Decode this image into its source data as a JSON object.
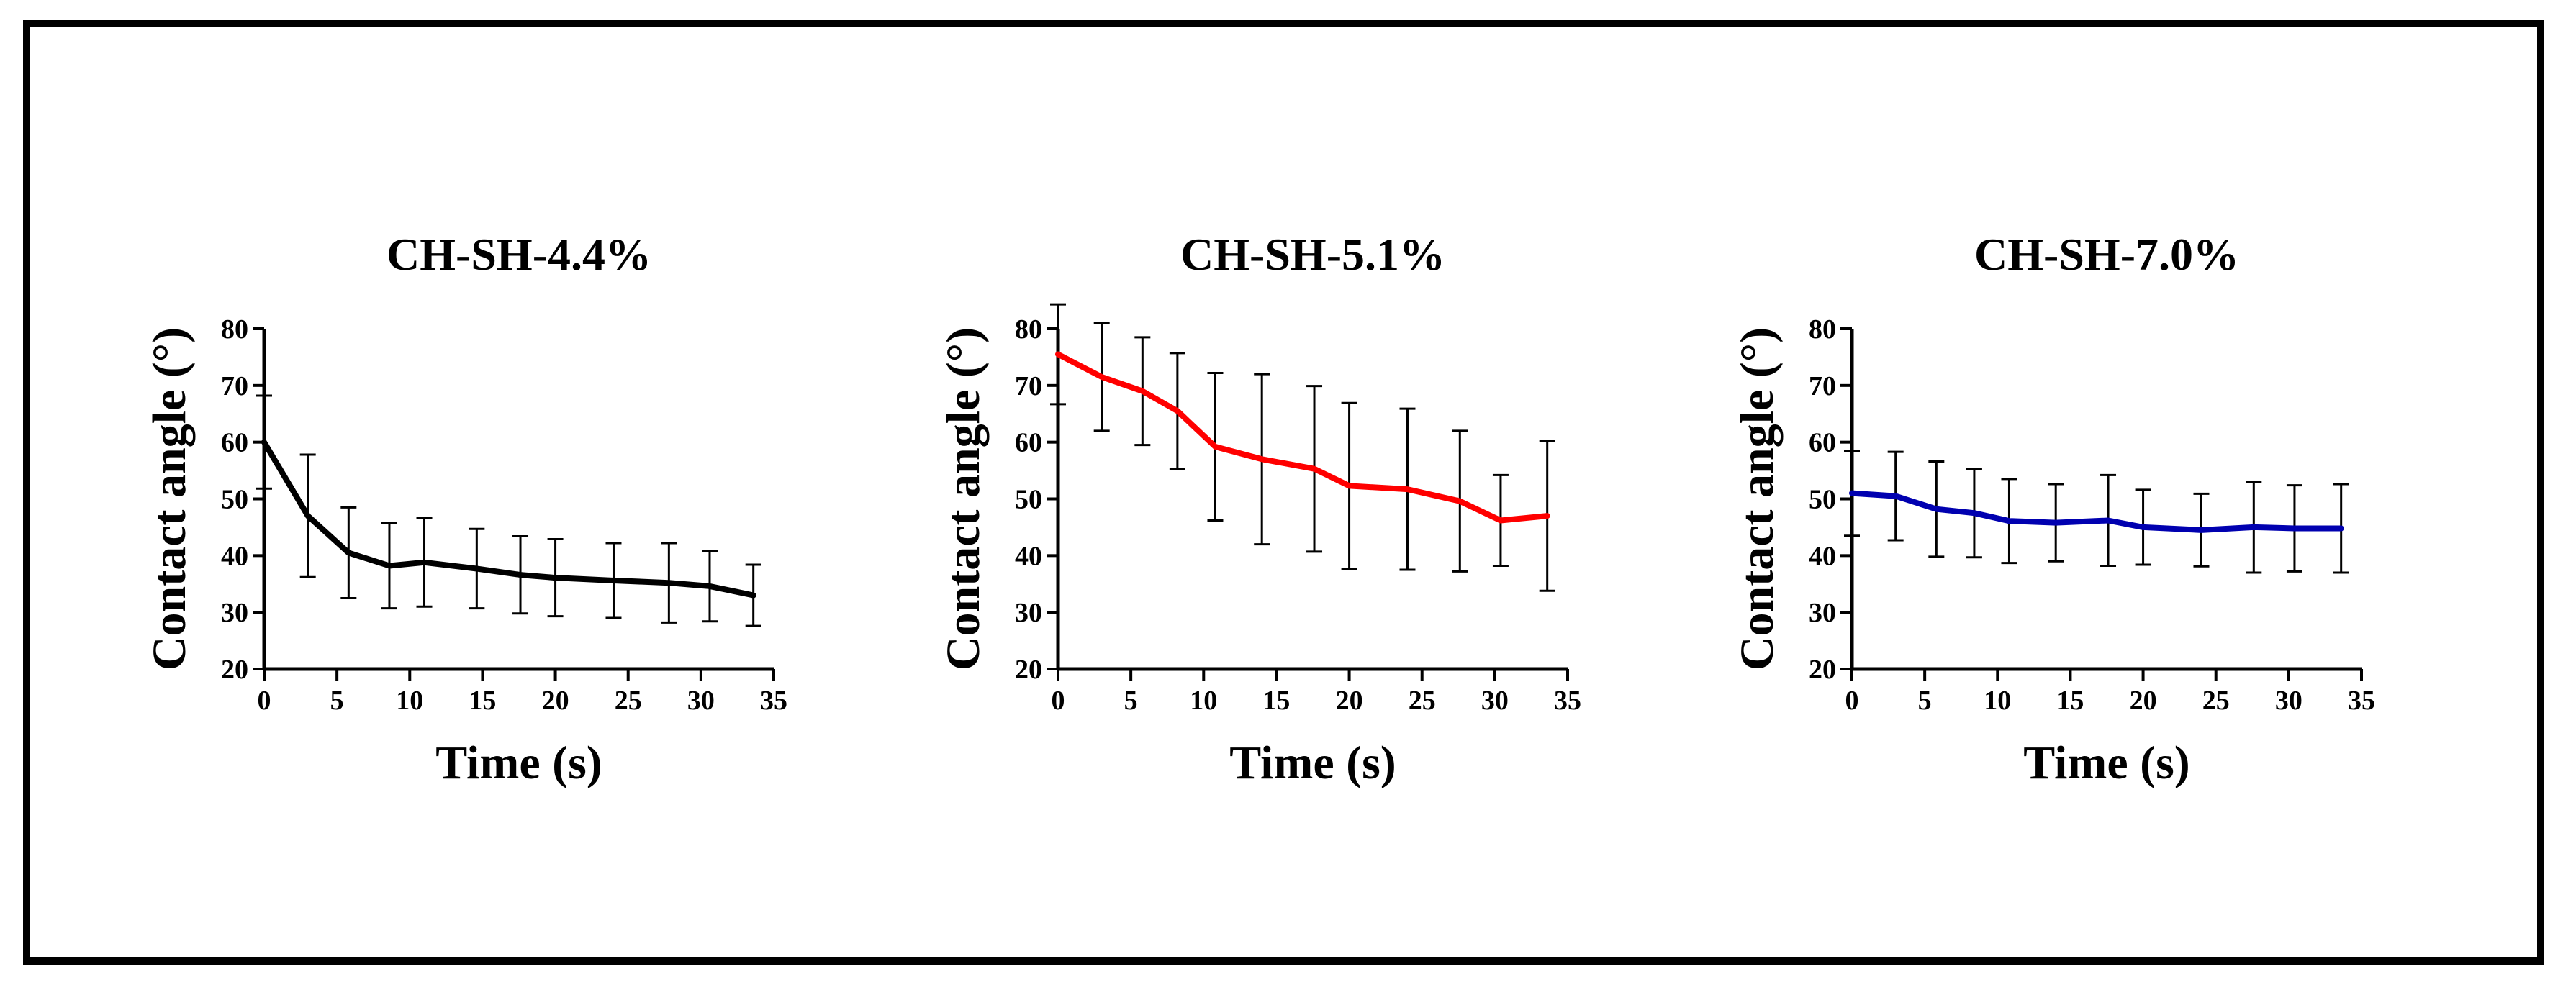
{
  "chart_data": [
    {
      "type": "line",
      "title": "CH-SH-4.4%",
      "xlabel": "Time (s)",
      "ylabel": "Contact angle (°)",
      "xlim": [
        0,
        35
      ],
      "ylim": [
        20,
        80
      ],
      "xticks": [
        0,
        5,
        10,
        15,
        20,
        25,
        30,
        35
      ],
      "yticks": [
        20,
        30,
        40,
        50,
        60,
        70,
        80
      ],
      "grid": false,
      "series": [
        {
          "color": "#000000",
          "x": [
            0,
            3,
            5.8,
            8.6,
            11,
            14.6,
            17.6,
            20,
            24,
            27.8,
            30.6,
            33.6
          ],
          "y": [
            60,
            47,
            40.5,
            38.2,
            38.8,
            37.7,
            36.6,
            36.1,
            35.6,
            35.2,
            34.6,
            33
          ],
          "err": [
            8.2,
            10.8,
            8,
            7.5,
            7.8,
            7,
            6.8,
            6.8,
            6.6,
            7,
            6.2,
            5.4
          ]
        }
      ]
    },
    {
      "type": "line",
      "title": "CH-SH-5.1%",
      "xlabel": "Time (s)",
      "ylabel": "Contact angle (°)",
      "xlim": [
        0,
        35
      ],
      "ylim": [
        20,
        80
      ],
      "xticks": [
        0,
        5,
        10,
        15,
        20,
        25,
        30,
        35
      ],
      "yticks": [
        20,
        30,
        40,
        50,
        60,
        70,
        80
      ],
      "grid": false,
      "series": [
        {
          "color": "#ff0000",
          "x": [
            0,
            3,
            5.8,
            8.2,
            10.8,
            14,
            17.6,
            20,
            24,
            27.6,
            30.4,
            33.6
          ],
          "y": [
            75.5,
            71.5,
            69,
            65.5,
            59.2,
            57,
            55.3,
            52.3,
            51.7,
            49.6,
            46.2,
            47
          ],
          "err": [
            8.8,
            9.5,
            9.5,
            10.2,
            13,
            15,
            14.6,
            14.6,
            14.2,
            12.4,
            8,
            13.2
          ]
        }
      ]
    },
    {
      "type": "line",
      "title": "CH-SH-7.0%",
      "xlabel": "Time (s)",
      "ylabel": "Contact angle (°)",
      "xlim": [
        0,
        35
      ],
      "ylim": [
        20,
        80
      ],
      "xticks": [
        0,
        5,
        10,
        15,
        20,
        25,
        30,
        35
      ],
      "yticks": [
        20,
        30,
        40,
        50,
        60,
        70,
        80
      ],
      "grid": false,
      "series": [
        {
          "color": "#0000b0",
          "x": [
            0,
            3,
            5.8,
            8.4,
            10.8,
            14,
            17.6,
            20,
            24,
            27.6,
            30.4,
            33.6
          ],
          "y": [
            51,
            50.5,
            48.2,
            47.5,
            46.1,
            45.8,
            46.2,
            45,
            44.5,
            45,
            44.8,
            44.8
          ],
          "err": [
            7.5,
            7.8,
            8.4,
            7.8,
            7.4,
            6.8,
            8,
            6.6,
            6.4,
            8,
            7.6,
            7.8
          ]
        }
      ]
    }
  ]
}
